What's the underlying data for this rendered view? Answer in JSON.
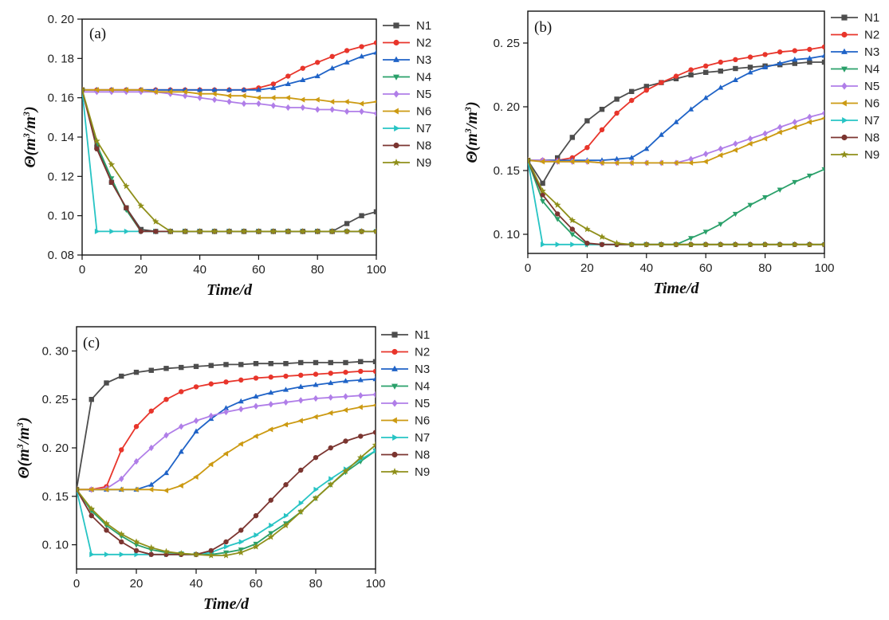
{
  "series_styles": [
    {
      "name": "N1",
      "color": "#4d4d4d",
      "marker": "square"
    },
    {
      "name": "N2",
      "color": "#e8352b",
      "marker": "circle"
    },
    {
      "name": "N3",
      "color": "#1f63c7",
      "marker": "triangle-up"
    },
    {
      "name": "N4",
      "color": "#2aa06a",
      "marker": "triangle-down"
    },
    {
      "name": "N5",
      "color": "#b07ee8",
      "marker": "diamond"
    },
    {
      "name": "N6",
      "color": "#cc9a12",
      "marker": "triangle-left"
    },
    {
      "name": "N7",
      "color": "#27c4c4",
      "marker": "triangle-right"
    },
    {
      "name": "N8",
      "color": "#7b3530",
      "marker": "circle"
    },
    {
      "name": "N9",
      "color": "#8f8f1a",
      "marker": "star"
    }
  ],
  "chart_data": [
    {
      "type": "line",
      "panel_label": "(a)",
      "xlabel": "Time/d",
      "ylabel_parts": [
        "Θ(m",
        "3",
        "/m",
        "3",
        ")"
      ],
      "xlim": [
        0,
        100
      ],
      "ylim": [
        0.08,
        0.2
      ],
      "xticks": [
        0,
        20,
        40,
        60,
        80,
        100
      ],
      "xtick_labels": [
        "0",
        "20",
        "40",
        "60",
        "80",
        "100"
      ],
      "yticks": [
        0.08,
        0.1,
        0.12,
        0.14,
        0.16,
        0.18,
        0.2
      ],
      "ytick_labels": [
        "0. 08",
        "0. 10",
        "0. 12",
        "0. 14",
        "0. 16",
        "0. 18",
        "0. 20"
      ],
      "x": [
        0,
        5,
        10,
        15,
        20,
        25,
        30,
        35,
        40,
        45,
        50,
        55,
        60,
        65,
        70,
        75,
        80,
        85,
        90,
        95,
        100
      ],
      "series": [
        {
          "name": "N1",
          "values": [
            0.164,
            0.135,
            0.117,
            0.104,
            0.093,
            0.092,
            0.092,
            0.092,
            0.092,
            0.092,
            0.092,
            0.092,
            0.092,
            0.092,
            0.092,
            0.092,
            0.092,
            0.092,
            0.096,
            0.1,
            0.102
          ]
        },
        {
          "name": "N2",
          "values": [
            0.164,
            0.164,
            0.164,
            0.164,
            0.164,
            0.164,
            0.164,
            0.164,
            0.164,
            0.164,
            0.164,
            0.164,
            0.165,
            0.167,
            0.171,
            0.175,
            0.178,
            0.181,
            0.184,
            0.186,
            0.188
          ]
        },
        {
          "name": "N3",
          "values": [
            0.164,
            0.164,
            0.164,
            0.164,
            0.164,
            0.164,
            0.164,
            0.164,
            0.164,
            0.164,
            0.164,
            0.164,
            0.164,
            0.165,
            0.167,
            0.169,
            0.171,
            0.175,
            0.178,
            0.181,
            0.183
          ]
        },
        {
          "name": "N4",
          "values": [
            0.164,
            0.136,
            0.119,
            0.103,
            0.092,
            0.092,
            0.092,
            0.092,
            0.092,
            0.092,
            0.092,
            0.092,
            0.092,
            0.092,
            0.092,
            0.092,
            0.092,
            0.092,
            0.092,
            0.092,
            0.092
          ]
        },
        {
          "name": "N5",
          "values": [
            0.163,
            0.163,
            0.163,
            0.163,
            0.163,
            0.163,
            0.162,
            0.161,
            0.16,
            0.159,
            0.158,
            0.157,
            0.157,
            0.156,
            0.155,
            0.155,
            0.154,
            0.154,
            0.153,
            0.153,
            0.152
          ]
        },
        {
          "name": "N6",
          "values": [
            0.164,
            0.164,
            0.164,
            0.164,
            0.164,
            0.163,
            0.163,
            0.163,
            0.162,
            0.162,
            0.161,
            0.161,
            0.16,
            0.16,
            0.16,
            0.159,
            0.159,
            0.158,
            0.158,
            0.157,
            0.158
          ]
        },
        {
          "name": "N7",
          "values": [
            0.164,
            0.092,
            0.092,
            0.092,
            0.092,
            0.092,
            0.092,
            0.092,
            0.092,
            0.092,
            0.092,
            0.092,
            0.092,
            0.092,
            0.092,
            0.092,
            0.092,
            0.092,
            0.092,
            0.092,
            0.092
          ]
        },
        {
          "name": "N8",
          "values": [
            0.164,
            0.134,
            0.117,
            0.104,
            0.092,
            0.092,
            0.092,
            0.092,
            0.092,
            0.092,
            0.092,
            0.092,
            0.092,
            0.092,
            0.092,
            0.092,
            0.092,
            0.092,
            0.092,
            0.092,
            0.092
          ]
        },
        {
          "name": "N9",
          "values": [
            0.164,
            0.138,
            0.126,
            0.115,
            0.105,
            0.097,
            0.092,
            0.092,
            0.092,
            0.092,
            0.092,
            0.092,
            0.092,
            0.092,
            0.092,
            0.092,
            0.092,
            0.092,
            0.092,
            0.092,
            0.092
          ]
        }
      ]
    },
    {
      "type": "line",
      "panel_label": "(b)",
      "xlabel": "Time/d",
      "ylabel_parts": [
        "Θ(m",
        "3",
        "/m",
        "3",
        ")"
      ],
      "xlim": [
        0,
        100
      ],
      "ylim": [
        0.085,
        0.275
      ],
      "xticks": [
        0,
        20,
        40,
        60,
        80,
        100
      ],
      "xtick_labels": [
        "0",
        "20",
        "40",
        "60",
        "80",
        "100"
      ],
      "yticks": [
        0.1,
        0.15,
        0.2,
        0.25
      ],
      "ytick_labels": [
        "0. 10",
        "0. 15",
        "0. 20",
        "0. 25"
      ],
      "x": [
        0,
        5,
        10,
        15,
        20,
        25,
        30,
        35,
        40,
        45,
        50,
        55,
        60,
        65,
        70,
        75,
        80,
        85,
        90,
        95,
        100
      ],
      "series": [
        {
          "name": "N1",
          "values": [
            0.158,
            0.14,
            0.16,
            0.176,
            0.189,
            0.198,
            0.206,
            0.212,
            0.216,
            0.219,
            0.222,
            0.225,
            0.227,
            0.228,
            0.23,
            0.231,
            0.232,
            0.233,
            0.234,
            0.235,
            0.235
          ]
        },
        {
          "name": "N2",
          "values": [
            0.158,
            0.158,
            0.158,
            0.16,
            0.168,
            0.182,
            0.195,
            0.205,
            0.213,
            0.219,
            0.224,
            0.229,
            0.232,
            0.235,
            0.237,
            0.239,
            0.241,
            0.243,
            0.244,
            0.245,
            0.247
          ]
        },
        {
          "name": "N3",
          "values": [
            0.158,
            0.158,
            0.158,
            0.158,
            0.158,
            0.158,
            0.159,
            0.16,
            0.167,
            0.178,
            0.188,
            0.198,
            0.207,
            0.215,
            0.221,
            0.227,
            0.231,
            0.234,
            0.237,
            0.238,
            0.24
          ]
        },
        {
          "name": "N4",
          "values": [
            0.158,
            0.126,
            0.112,
            0.1,
            0.092,
            0.092,
            0.092,
            0.092,
            0.092,
            0.092,
            0.092,
            0.097,
            0.102,
            0.108,
            0.116,
            0.123,
            0.129,
            0.135,
            0.141,
            0.146,
            0.151
          ]
        },
        {
          "name": "N5",
          "values": [
            0.158,
            0.158,
            0.157,
            0.157,
            0.157,
            0.156,
            0.156,
            0.156,
            0.156,
            0.156,
            0.156,
            0.159,
            0.163,
            0.167,
            0.171,
            0.175,
            0.179,
            0.184,
            0.188,
            0.192,
            0.195
          ]
        },
        {
          "name": "N6",
          "values": [
            0.158,
            0.157,
            0.157,
            0.157,
            0.157,
            0.156,
            0.156,
            0.156,
            0.156,
            0.156,
            0.156,
            0.156,
            0.157,
            0.162,
            0.166,
            0.171,
            0.175,
            0.18,
            0.184,
            0.188,
            0.191
          ]
        },
        {
          "name": "N7",
          "values": [
            0.158,
            0.092,
            0.092,
            0.092,
            0.092,
            0.092,
            0.092,
            0.092,
            0.092,
            0.092,
            0.092,
            0.092,
            0.092,
            0.092,
            0.092,
            0.092,
            0.092,
            0.092,
            0.092,
            0.092,
            0.092
          ]
        },
        {
          "name": "N8",
          "values": [
            0.158,
            0.131,
            0.116,
            0.104,
            0.093,
            0.092,
            0.092,
            0.092,
            0.092,
            0.092,
            0.092,
            0.092,
            0.092,
            0.092,
            0.092,
            0.092,
            0.092,
            0.092,
            0.092,
            0.092,
            0.092
          ]
        },
        {
          "name": "N9",
          "values": [
            0.158,
            0.134,
            0.123,
            0.111,
            0.104,
            0.098,
            0.093,
            0.092,
            0.092,
            0.092,
            0.092,
            0.092,
            0.092,
            0.092,
            0.092,
            0.092,
            0.092,
            0.092,
            0.092,
            0.092,
            0.092
          ]
        }
      ]
    },
    {
      "type": "line",
      "panel_label": "(c)",
      "xlabel": "Time/d",
      "ylabel_parts": [
        "Θ(m",
        "3",
        "/m",
        "3",
        ")"
      ],
      "xlim": [
        0,
        100
      ],
      "ylim": [
        0.075,
        0.325
      ],
      "xticks": [
        0,
        20,
        40,
        60,
        80,
        100
      ],
      "xtick_labels": [
        "0",
        "20",
        "40",
        "60",
        "80",
        "100"
      ],
      "yticks": [
        0.1,
        0.15,
        0.2,
        0.25,
        0.3
      ],
      "ytick_labels": [
        "0. 10",
        "0. 15",
        "0. 20",
        "0. 25",
        "0. 30"
      ],
      "x": [
        0,
        5,
        10,
        15,
        20,
        25,
        30,
        35,
        40,
        45,
        50,
        55,
        60,
        65,
        70,
        75,
        80,
        85,
        90,
        95,
        100
      ],
      "series": [
        {
          "name": "N1",
          "values": [
            0.157,
            0.25,
            0.267,
            0.274,
            0.278,
            0.28,
            0.282,
            0.283,
            0.284,
            0.285,
            0.286,
            0.286,
            0.287,
            0.287,
            0.287,
            0.288,
            0.288,
            0.288,
            0.288,
            0.289,
            0.289
          ]
        },
        {
          "name": "N2",
          "values": [
            0.157,
            0.157,
            0.16,
            0.198,
            0.222,
            0.238,
            0.25,
            0.258,
            0.263,
            0.266,
            0.268,
            0.27,
            0.272,
            0.273,
            0.274,
            0.275,
            0.276,
            0.277,
            0.278,
            0.279,
            0.279
          ]
        },
        {
          "name": "N3",
          "values": [
            0.157,
            0.157,
            0.157,
            0.157,
            0.157,
            0.162,
            0.174,
            0.196,
            0.217,
            0.23,
            0.241,
            0.248,
            0.253,
            0.257,
            0.26,
            0.263,
            0.265,
            0.267,
            0.269,
            0.27,
            0.271
          ]
        },
        {
          "name": "N4",
          "values": [
            0.157,
            0.135,
            0.12,
            0.109,
            0.1,
            0.095,
            0.092,
            0.091,
            0.09,
            0.09,
            0.092,
            0.095,
            0.101,
            0.112,
            0.122,
            0.134,
            0.148,
            0.162,
            0.175,
            0.186,
            0.197
          ]
        },
        {
          "name": "N5",
          "values": [
            0.157,
            0.157,
            0.158,
            0.168,
            0.186,
            0.2,
            0.213,
            0.222,
            0.228,
            0.233,
            0.237,
            0.24,
            0.243,
            0.245,
            0.247,
            0.249,
            0.251,
            0.252,
            0.253,
            0.254,
            0.255
          ]
        },
        {
          "name": "N6",
          "values": [
            0.157,
            0.157,
            0.157,
            0.157,
            0.157,
            0.157,
            0.156,
            0.161,
            0.17,
            0.183,
            0.194,
            0.204,
            0.212,
            0.219,
            0.224,
            0.228,
            0.232,
            0.236,
            0.239,
            0.242,
            0.244
          ]
        },
        {
          "name": "N7",
          "values": [
            0.157,
            0.09,
            0.09,
            0.09,
            0.09,
            0.09,
            0.09,
            0.09,
            0.09,
            0.092,
            0.098,
            0.103,
            0.11,
            0.12,
            0.13,
            0.143,
            0.157,
            0.168,
            0.178,
            0.188,
            0.197
          ]
        },
        {
          "name": "N8",
          "values": [
            0.157,
            0.13,
            0.115,
            0.103,
            0.094,
            0.09,
            0.09,
            0.09,
            0.09,
            0.094,
            0.103,
            0.115,
            0.13,
            0.146,
            0.162,
            0.177,
            0.19,
            0.2,
            0.207,
            0.212,
            0.216
          ]
        },
        {
          "name": "N9",
          "values": [
            0.157,
            0.137,
            0.122,
            0.111,
            0.103,
            0.097,
            0.093,
            0.091,
            0.09,
            0.089,
            0.089,
            0.092,
            0.098,
            0.108,
            0.12,
            0.134,
            0.148,
            0.162,
            0.176,
            0.19,
            0.203
          ]
        }
      ]
    }
  ]
}
